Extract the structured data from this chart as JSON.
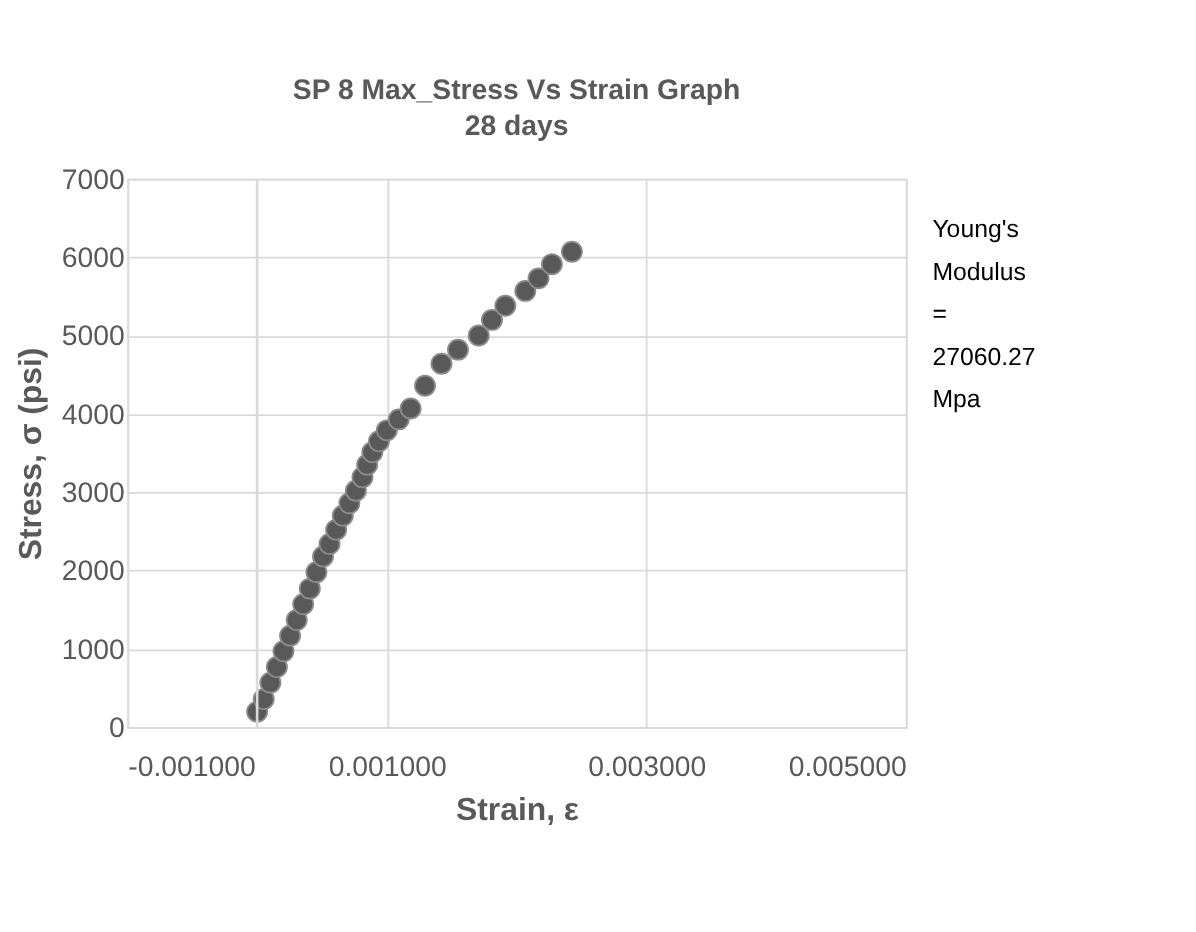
{
  "chart_data": {
    "type": "scatter",
    "title": "SP 8 Max_Stress Vs Strain Graph",
    "subtitle": "28 days",
    "xlabel": "Strain, ε",
    "ylabel": "Stress, σ (psi)",
    "x": [
      0,
      5.1e-05,
      0.000102,
      0.000152,
      0.000203,
      0.000254,
      0.000305,
      0.000355,
      0.000406,
      0.000457,
      0.000508,
      0.000558,
      0.000609,
      0.00066,
      0.000711,
      0.000761,
      0.000812,
      0.000848,
      0.000888,
      0.000939,
      0.001,
      0.001091,
      0.001183,
      0.001294,
      0.001421,
      0.001548,
      0.001708,
      0.00181,
      0.001913,
      0.002067,
      0.002169,
      0.002272,
      0.002426
    ],
    "series": [
      {
        "color": "#595959",
        "values": [
          200,
          360,
          570,
          770,
          970,
          1170,
          1370,
          1570,
          1770,
          1980,
          2180,
          2340,
          2520,
          2700,
          2860,
          3020,
          3190,
          3350,
          3510,
          3650,
          3790,
          3930,
          4070,
          4360,
          4640,
          4820,
          5000,
          5200,
          5380,
          5570,
          5730,
          5910,
          6070
        ]
      }
    ],
    "xlim": [
      -0.001,
      0.005
    ],
    "xticks": [
      {
        "value": -0.001,
        "label": "-0.001000"
      },
      {
        "value": 0.001,
        "label": "0.001000"
      },
      {
        "value": 0.003,
        "label": "0.003000"
      },
      {
        "value": 0.005,
        "label": "0.005000"
      }
    ],
    "ylim": [
      0,
      7000
    ],
    "yticks": [
      0,
      1000,
      2000,
      3000,
      4000,
      5000,
      6000,
      7000
    ],
    "ref_lines": [
      {
        "axis": "x",
        "value": 0,
        "color": "#d9d9d9"
      }
    ],
    "annotations": [
      "Young's Modulus = 27060.27 Mpa"
    ],
    "grid": true,
    "marker": "circle"
  }
}
